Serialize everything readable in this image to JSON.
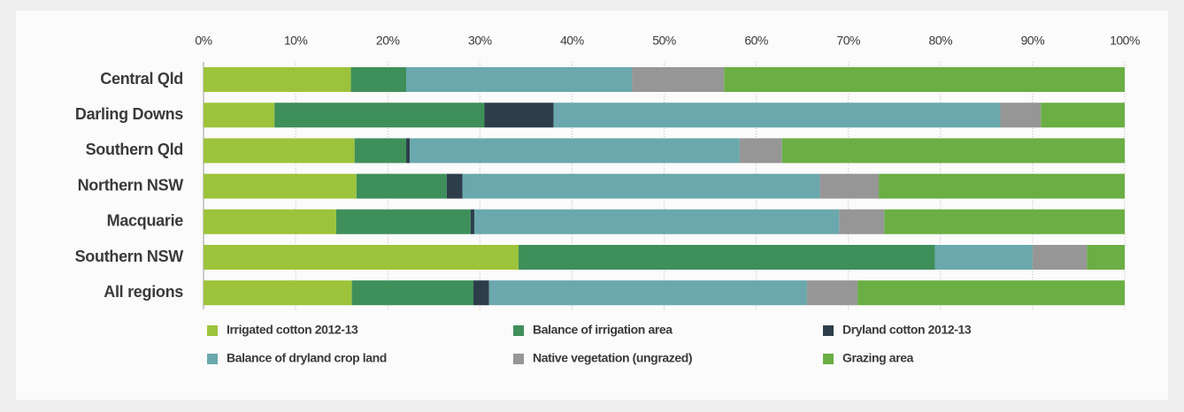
{
  "chart_data": {
    "type": "stacked-bar-horizontal",
    "categories": [
      "Central Qld",
      "Darling Downs",
      "Southern Qld",
      "Northern NSW",
      "Macquarie",
      "Southern NSW",
      "All regions"
    ],
    "series": [
      {
        "name": "Irrigated cotton 2012-13",
        "color": "#9dc33b",
        "values": [
          16,
          7.7,
          16.4,
          16.6,
          14.4,
          34.2,
          16.1
        ]
      },
      {
        "name": "Balance of irrigation area",
        "color": "#3f8f5a",
        "values": [
          6,
          22.8,
          5.6,
          9.8,
          14.6,
          45.2,
          13.2
        ]
      },
      {
        "name": "Dryland cotton 2012-13",
        "color": "#2d3e4a",
        "values": [
          0,
          7.5,
          0.4,
          1.7,
          0.4,
          0,
          1.7
        ]
      },
      {
        "name": "Balance of dryland crop land",
        "color": "#6aa8ad",
        "values": [
          24.5,
          48.5,
          35.8,
          38.8,
          39.6,
          10.6,
          34.5
        ]
      },
      {
        "name": "Native vegetation (ungrazed)",
        "color": "#969696",
        "values": [
          10,
          4.4,
          4.6,
          6.4,
          4.9,
          5.9,
          5.5
        ]
      },
      {
        "name": "Grazing area",
        "color": "#6aae44",
        "values": [
          43.5,
          9.1,
          37.2,
          26.7,
          26.1,
          4.1,
          29.0
        ]
      }
    ],
    "xlim": [
      0,
      100
    ],
    "xticks": [
      {
        "value": 0,
        "label": "0%"
      },
      {
        "value": 10,
        "label": "10%"
      },
      {
        "value": 20,
        "label": "20%"
      },
      {
        "value": 30,
        "label": "30%"
      },
      {
        "value": 40,
        "label": "40%"
      },
      {
        "value": 50,
        "label": "50%"
      },
      {
        "value": 60,
        "label": "60%"
      },
      {
        "value": 70,
        "label": "70%"
      },
      {
        "value": 80,
        "label": "80%"
      },
      {
        "value": 90,
        "label": "90%"
      },
      {
        "value": 100,
        "label": "100%"
      }
    ],
    "grid": true
  }
}
